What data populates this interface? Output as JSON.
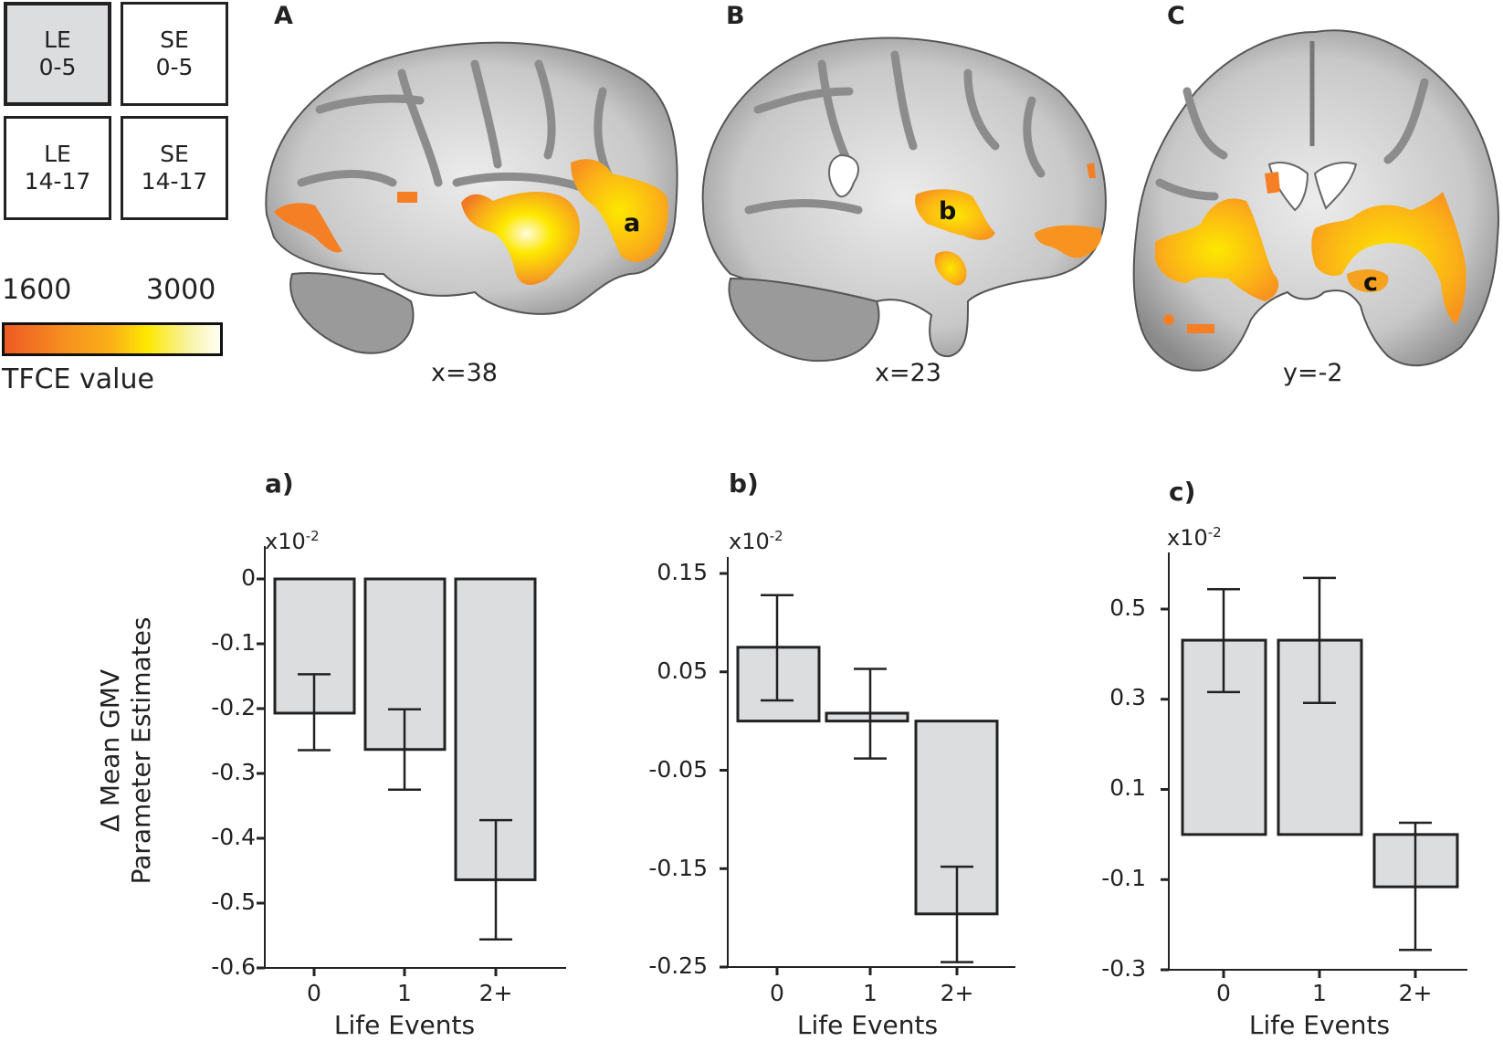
{
  "legend": {
    "boxes": [
      {
        "line1": "LE",
        "line2": "0-5",
        "active": true
      },
      {
        "line1": "SE",
        "line2": "0-5",
        "active": false
      },
      {
        "line1": "LE",
        "line2": "14-17",
        "active": false
      },
      {
        "line1": "SE",
        "line2": "14-17",
        "active": false
      }
    ],
    "colorbar": {
      "min_label": "1600",
      "max_label": "3000",
      "title": "TFCE value",
      "colors": [
        "#ee5a24",
        "#f7931e",
        "#fbb117",
        "#fde800",
        "#fffef5"
      ]
    }
  },
  "brain_panels": [
    {
      "letter": "A",
      "region_label": "a",
      "coord": "x=38",
      "view": "sagittal"
    },
    {
      "letter": "B",
      "region_label": "b",
      "coord": "x=23",
      "view": "sagittal"
    },
    {
      "letter": "C",
      "region_label": "c",
      "coord": "y=-2",
      "view": "coronal"
    }
  ],
  "shared_ylabel": {
    "line1": "Δ Mean GMV",
    "line2": "Parameter Estimates"
  },
  "chart_data": [
    {
      "type": "bar",
      "title": "a)",
      "multiplier": "x10",
      "multiplier_exp": "-2",
      "xlabel": "Life Events",
      "ylabel": "Δ Mean GMV Parameter Estimates",
      "categories": [
        "0",
        "1",
        "2+"
      ],
      "values": [
        -0.207,
        -0.263,
        -0.464
      ],
      "error_low": [
        -0.264,
        -0.325,
        -0.556
      ],
      "error_high": [
        -0.147,
        -0.201,
        -0.372
      ],
      "yticks": [
        "0",
        "-0.1",
        "-0.2",
        "-0.3",
        "-0.4",
        "-0.5",
        "-0.6"
      ],
      "ylim": [
        -0.6,
        0
      ],
      "bar_color": "#dcdddf",
      "grid": false
    },
    {
      "type": "bar",
      "title": "b)",
      "multiplier": "x10",
      "multiplier_exp": "-2",
      "xlabel": "Life Events",
      "ylabel": "Δ Mean GMV Parameter Estimates",
      "categories": [
        "0",
        "1",
        "2+"
      ],
      "values": [
        0.075,
        0.008,
        -0.196
      ],
      "error_low": [
        0.021,
        -0.038,
        -0.245
      ],
      "error_high": [
        0.128,
        0.053,
        -0.148
      ],
      "yticks": [
        "0.15",
        "0.05",
        "-0.05",
        "-0.15",
        "-0.25"
      ],
      "ylim": [
        -0.25,
        0.15
      ],
      "bar_color": "#dcdddf",
      "grid": false
    },
    {
      "type": "bar",
      "title": "c)",
      "multiplier": "x10",
      "multiplier_exp": "-2",
      "xlabel": "Life Events",
      "ylabel": "Δ Mean GMV Parameter Estimates",
      "categories": [
        "0",
        "1",
        "2+"
      ],
      "values": [
        0.431,
        0.431,
        -0.116
      ],
      "error_low": [
        0.316,
        0.292,
        -0.256
      ],
      "error_high": [
        0.544,
        0.569,
        0.026
      ],
      "yticks": [
        "0.5",
        "0.3",
        "0.1",
        "-0.1",
        "-0.3"
      ],
      "ylim": [
        -0.3,
        0.6
      ],
      "bar_color": "#dcdddf",
      "grid": false
    }
  ]
}
